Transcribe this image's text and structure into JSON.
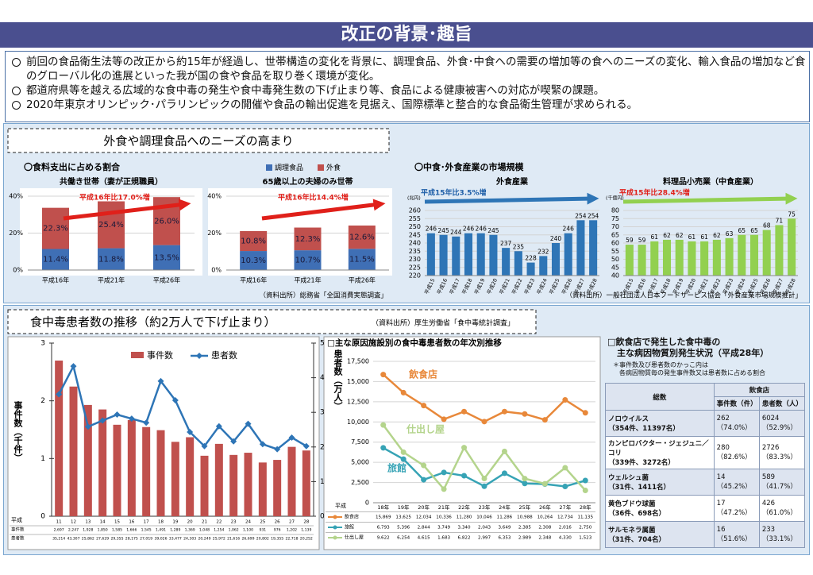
{
  "header": {
    "title": "改正の背景･趣旨"
  },
  "bullets": [
    "前回の食品衛生法等の改正から約15年が経過し、世帯構造の変化を背景に、調理食品、外食･中食への需要の増加等の食へのニーズの変化、輸入食品の増加など食のグローバル化の進展といった我が国の食や食品を取り巻く環境が変化。",
    "都道府県等を越える広域的な食中毒の発生や食中毒発生数の下げ止まり等、食品による健康被害への対応が喫緊の課題。",
    "2020年東京オリンピック･パラリンピックの開催や食品の輸出促進を見据え、国際標準と整合的な食品衛生管理が求められる。"
  ],
  "sections": [
    {
      "title": "外食や調理食品へのニーズの高まり"
    },
    {
      "title": "食中毒患者数の推移（約2万人で下げ止まり）",
      "source": "（資料出所）厚生労働省「食中毒統計調査」"
    }
  ],
  "subsections": [
    {
      "title": "〇食料支出に占める割合",
      "source": "（資料出所）総務省「全国消費実態調査」"
    },
    {
      "title": "〇中食･外食産業の市場規模",
      "source": "（資料出所）一般社団法人日本フードサービス協会「外食産業市場規模推計」"
    }
  ],
  "chart_data": [
    {
      "type": "stacked_bar",
      "title": "共働き世帯（妻が正規職員）",
      "categories": [
        "平成16年",
        "平成21年",
        "平成26年"
      ],
      "series": [
        {
          "name": "調理食品",
          "color": "#3f6fb5",
          "values": [
            11.4,
            11.8,
            13.5
          ],
          "value_labels": [
            "11.4%",
            "11.8%",
            "13.5%"
          ]
        },
        {
          "name": "外食",
          "color": "#c0504d",
          "values": [
            22.3,
            25.4,
            26.0
          ],
          "value_labels": [
            "22.3%",
            "25.4%",
            "26.0%"
          ]
        }
      ],
      "ylim": [
        0,
        40
      ],
      "yticks": [
        {
          "value": 0,
          "label": "0%"
        },
        {
          "value": 20,
          "label": "20%"
        },
        {
          "value": 40,
          "label": "40%"
        }
      ],
      "annotation": "平成16年比17.0%増",
      "grid": true
    },
    {
      "type": "stacked_bar",
      "title": "65歳以上の夫婦のみ世帯",
      "categories": [
        "平成16年",
        "平成21年",
        "平成26年"
      ],
      "series": [
        {
          "color": "#3f6fb5",
          "values": [
            10.3,
            10.7,
            11.5
          ],
          "value_labels": [
            "10.3%",
            "10.7%",
            "11.5%"
          ]
        },
        {
          "color": "#c0504d",
          "values": [
            10.8,
            12.3,
            12.6
          ],
          "value_labels": [
            "10.8%",
            "12.3%",
            "12.6%"
          ]
        }
      ],
      "ylim": [
        0,
        40
      ],
      "yticks": [
        {
          "value": 0,
          "label": "0%"
        },
        {
          "value": 20,
          "label": "20%"
        },
        {
          "value": 40,
          "label": "40%"
        }
      ],
      "annotation": "平成16年比14.4%増",
      "grid": true
    },
    {
      "type": "bar",
      "title": "外食産業",
      "unit": "(兆円)",
      "categories": [
        "平成15",
        "平成16",
        "平成17",
        "平成18",
        "平成19",
        "平成20",
        "平成21",
        "平成22",
        "平成23",
        "平成24",
        "平成25",
        "平成26",
        "平成27",
        "平成28"
      ],
      "values": [
        246,
        245,
        244,
        246,
        246,
        245,
        237,
        235,
        228,
        232,
        240,
        246,
        254,
        254
      ],
      "color": "#2e75b6",
      "ylim": [
        220,
        260
      ],
      "yticks": [
        220,
        225,
        230,
        235,
        240,
        245,
        250,
        255,
        260
      ],
      "annotation": "平成15年比3.5%増",
      "grid": true
    },
    {
      "type": "bar",
      "title": "料理品小売業（中食産業）",
      "unit": "(千億円)",
      "categories": [
        "平成15",
        "平成16",
        "平成17",
        "平成18",
        "平成19",
        "平成20",
        "平成21",
        "平成22",
        "平成23",
        "平成24",
        "平成25",
        "平成26",
        "平成27",
        "平成28"
      ],
      "values": [
        59,
        59,
        61,
        62,
        62,
        61,
        61,
        62,
        63,
        65,
        65,
        68,
        71,
        75
      ],
      "color": "#92d050",
      "ylim": [
        40,
        80
      ],
      "yticks": [
        40,
        45,
        50,
        55,
        60,
        65,
        70,
        75,
        80
      ],
      "annotation": "平成15年比28.4%増",
      "grid": true
    },
    {
      "type": "combo",
      "category_prefix": "平成",
      "categories": [
        "11",
        "12",
        "13",
        "14",
        "15",
        "16",
        "17",
        "18",
        "19",
        "20",
        "21",
        "22",
        "23",
        "24",
        "25",
        "26",
        "27",
        "28"
      ],
      "series": [
        {
          "name": "事件数",
          "type": "bar",
          "color": "#c0504d",
          "values": [
            2.697,
            2.247,
            1.928,
            1.85,
            1.585,
            1.666,
            1.545,
            1.491,
            1.289,
            1.369,
            1.048,
            1.254,
            1.062,
            1.1,
            0.931,
            0.976,
            1.202,
            1.139
          ],
          "value_labels": [
            "2,697",
            "2,247",
            "1,928",
            "1,850",
            "1,585",
            "1,666",
            "1,545",
            "1,491",
            "1,289",
            "1,369",
            "1,048",
            "1,254",
            "1,062",
            "1,100",
            "931",
            "976",
            "1,202",
            "1,139"
          ]
        },
        {
          "name": "患者数",
          "type": "line",
          "axis": "y2",
          "color": "#2e75b6",
          "values": [
            3.5214,
            4.3307,
            2.5862,
            2.7629,
            2.9355,
            2.8175,
            2.7019,
            3.9026,
            3.3477,
            2.4303,
            2.0249,
            2.5972,
            2.1616,
            2.6699,
            2.0802,
            1.9355,
            2.2718,
            2.0252
          ],
          "value_labels": [
            "35,214",
            "43,307",
            "25,862",
            "27,629",
            "29,355",
            "28,175",
            "27,019",
            "39,026",
            "33,477",
            "24,303",
            "20,249",
            "25,972",
            "21,616",
            "26,699",
            "20,802",
            "19,355",
            "22,718",
            "20,252"
          ]
        }
      ],
      "ylabel": "事件数（千件）",
      "y2label": "患者数（万人）",
      "ylim": [
        0,
        3
      ],
      "yticks": [
        0,
        1,
        2,
        3
      ],
      "y2lim": [
        0,
        5
      ],
      "y2ticks": [
        0,
        1,
        2,
        3,
        4,
        5
      ],
      "grid": false
    },
    {
      "type": "line",
      "title": "□主な原因施設別の食中毒患者数の年次別推移",
      "category_prefix": "平成",
      "categories": [
        "18年",
        "19年",
        "20年",
        "21年",
        "22年",
        "23年",
        "24年",
        "25年",
        "26年",
        "27年",
        "28年"
      ],
      "series": [
        {
          "name": "飲食店",
          "color": "#e8883a",
          "values": [
            15869,
            13625,
            12034,
            10336,
            11280,
            10046,
            11286,
            10988,
            10264,
            12734,
            11135
          ],
          "value_labels": [
            "15,869",
            "13,625",
            "12,034",
            "10,336",
            "11,280",
            "10,046",
            "11,286",
            "10,988",
            "10,264",
            "12,734",
            "11,135"
          ]
        },
        {
          "name": "旅館",
          "color": "#36a3b5",
          "values": [
            6793,
            5396,
            2844,
            3749,
            3340,
            2043,
            3649,
            2385,
            2308,
            2016,
            2750
          ],
          "value_labels": [
            "6,793",
            "5,396",
            "2,844",
            "3,749",
            "3,340",
            "2,043",
            "3,649",
            "2,385",
            "2,308",
            "2,016",
            "2,750"
          ]
        },
        {
          "name": "仕出し屋",
          "color": "#b4d48c",
          "values": [
            9622,
            6254,
            4615,
            1683,
            6822,
            2997,
            6353,
            2989,
            2348,
            4330,
            1523
          ],
          "value_labels": [
            "9,622",
            "6,254",
            "4,615",
            "1,683",
            "6,822",
            "2,997",
            "6,353",
            "2,989",
            "2,348",
            "4,330",
            "1,523"
          ]
        }
      ],
      "ylim": [
        0,
        17500
      ],
      "yticks": [
        0,
        {
          "value": 2500,
          "label": "2,500"
        },
        {
          "value": 5000,
          "label": "5,000"
        },
        {
          "value": 7500,
          "label": "7,500"
        },
        {
          "value": 10000,
          "label": "10,000"
        },
        {
          "value": 12500,
          "label": "12,500"
        },
        {
          "value": 15000,
          "label": "15,000"
        },
        {
          "value": 17500,
          "label": "17,500"
        }
      ],
      "grid": true
    }
  ],
  "table": {
    "title_lines": [
      "□飲食店で発生した食中毒の",
      "主な病因物質別発生状況（平成28年）"
    ],
    "note_lines": [
      "＊事件数及び患者数のかっこ内は",
      "各病因物質毎の発生事件数又は患者数に占める割合"
    ],
    "headers": [
      "総数",
      "飲食店",
      "事件数（件）",
      "患者数（人）"
    ],
    "rows": [
      [
        "ノロウイルス",
        "（354件、11397名）",
        "262",
        "（74.0%）",
        "6024",
        "（52.9%）"
      ],
      [
        "カンピロバクター・ジェジュニ／コリ",
        "（339件、3272名）",
        "280",
        "（82.6%）",
        "2726",
        "（83.3%）"
      ],
      [
        "ウェルシュ菌",
        "（31件、1411名）",
        "14",
        "（45.2%）",
        "589",
        "（41.7%）"
      ],
      [
        "黄色ブドウ球菌",
        "（36件、698名）",
        "17",
        "（47.2%）",
        "426",
        "（61.0%）"
      ],
      [
        "サルモネラ属菌",
        "（31件、704名）",
        "16",
        "（51.6%）",
        "233",
        "（33.1%）"
      ]
    ]
  }
}
